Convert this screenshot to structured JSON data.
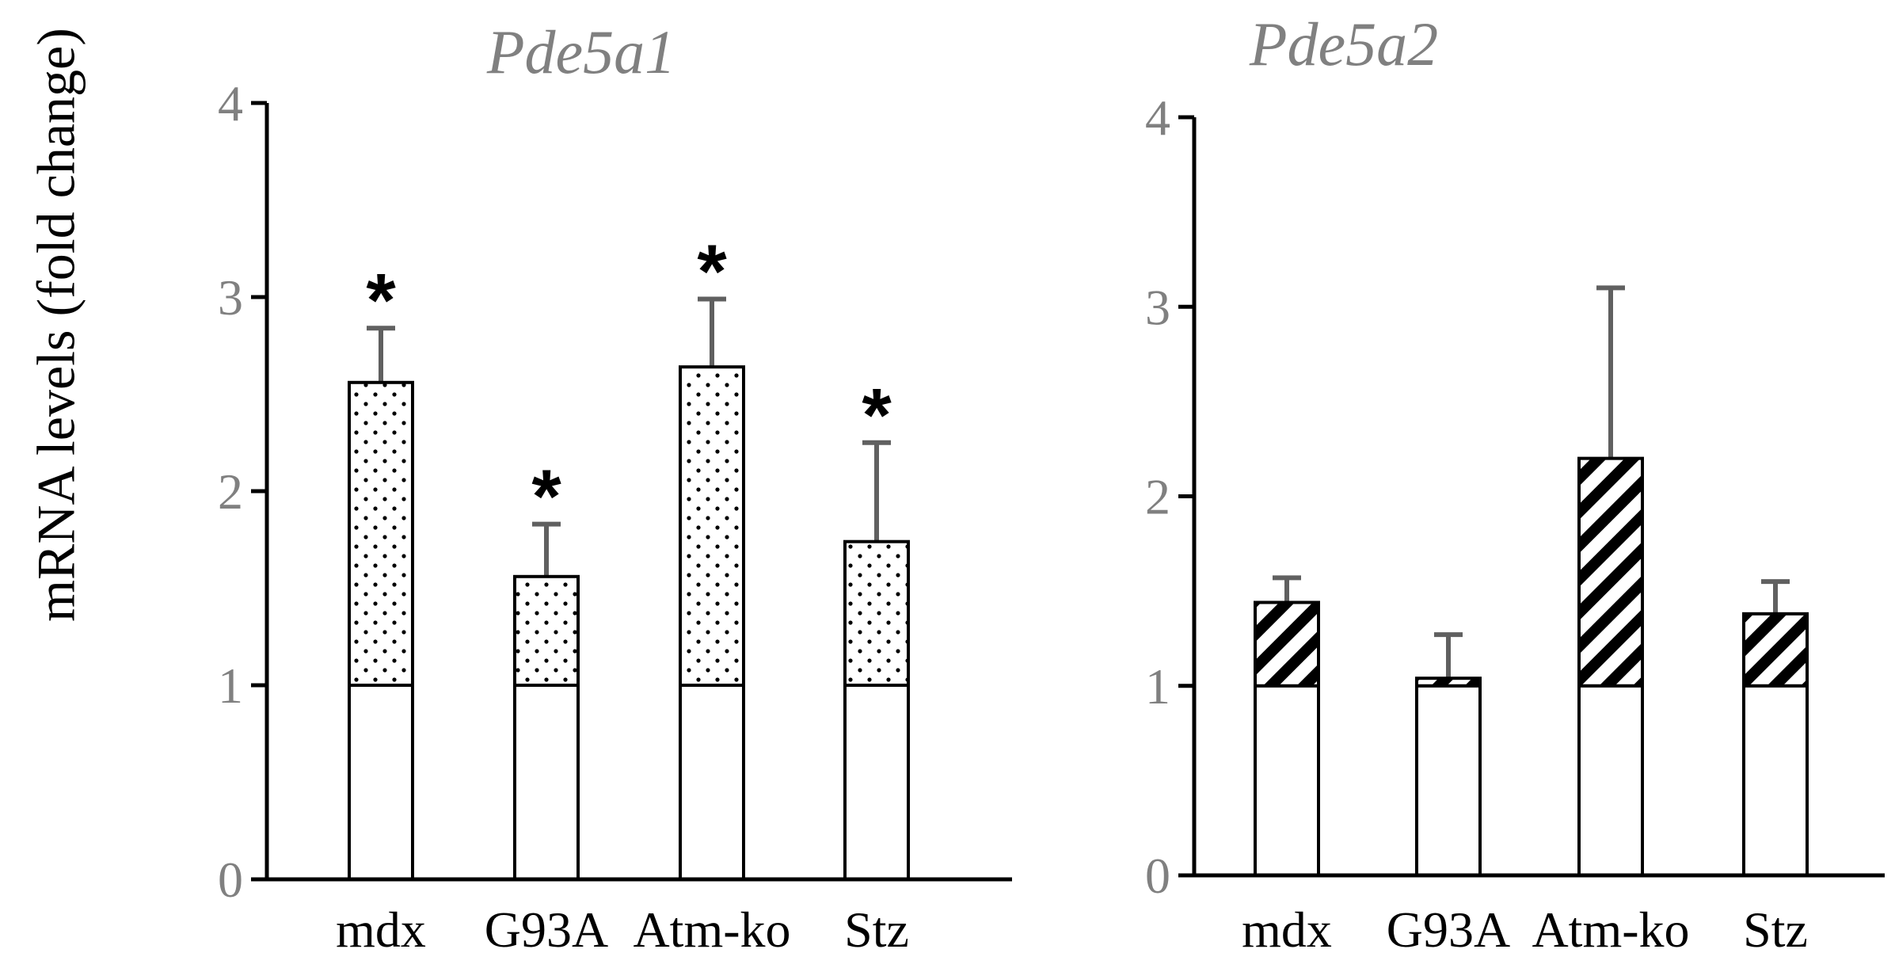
{
  "chart_data": [
    {
      "type": "bar",
      "title": "Pde5a1",
      "ylabel": "mRNA levels (fold change)",
      "xlabel": "",
      "ylim": [
        0,
        4
      ],
      "yticks": [
        "0",
        "1",
        "2",
        "3",
        "4"
      ],
      "categories": [
        "mdx",
        "G93A",
        "Atm-ko",
        "Stz"
      ],
      "baseline": 1,
      "values": [
        2.56,
        1.56,
        2.64,
        1.74
      ],
      "errors": [
        0.28,
        0.27,
        0.35,
        0.51
      ],
      "significance": [
        "*",
        "*",
        "*",
        "*"
      ],
      "pattern": "dots"
    },
    {
      "type": "bar",
      "title": "Pde5a2",
      "ylabel": "",
      "xlabel": "",
      "ylim": [
        0,
        4
      ],
      "yticks": [
        "0",
        "1",
        "2",
        "3",
        "4"
      ],
      "categories": [
        "mdx",
        "G93A",
        "Atm-ko",
        "Stz"
      ],
      "baseline": 1,
      "values": [
        1.44,
        1.04,
        2.2,
        1.38
      ],
      "errors": [
        0.13,
        0.23,
        0.9,
        0.17
      ],
      "significance": [
        "",
        "",
        "",
        ""
      ],
      "pattern": "diagonal-stripes"
    }
  ],
  "colors": {
    "axis": "#000000",
    "tick_label": "#808080",
    "title": "#808080",
    "error_bar": "#606060",
    "bar_fill": "#ffffff",
    "bar_stroke": "#000000"
  }
}
